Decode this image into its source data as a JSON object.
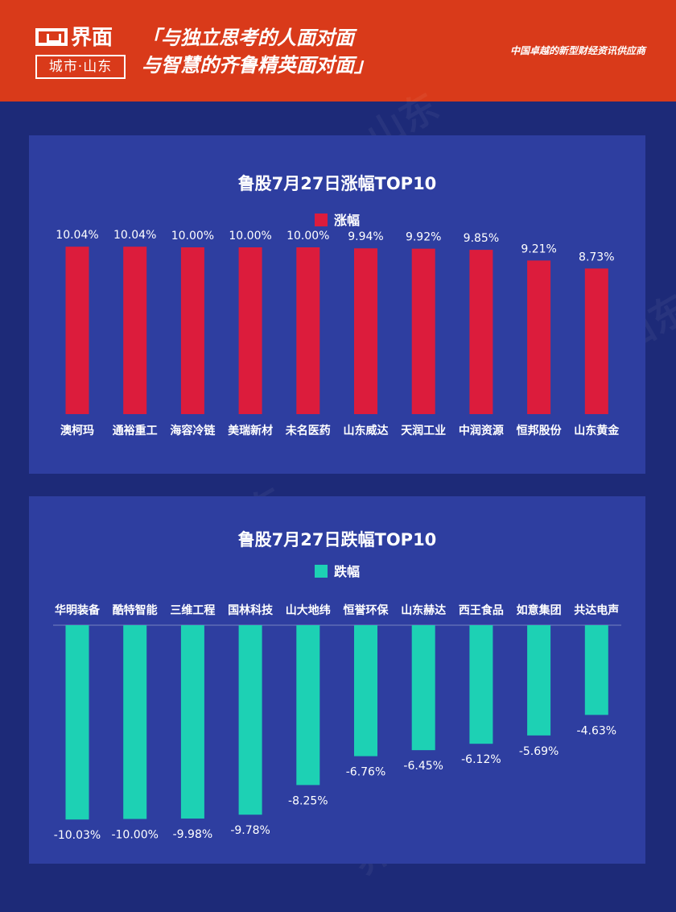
{
  "header": {
    "logo_name": "界面",
    "logo_sub": "城市·山东",
    "slogan_line1": "「与独立思考的人面对面",
    "slogan_line2": "与智慧的齐鲁精英面对面」",
    "tagline": "中国卓越的新型财经资讯供应商"
  },
  "colors": {
    "header_bg": "#d93a1a",
    "background": "#1d2a78",
    "panel": "#2e3ea0",
    "rise": "#dc1c3c",
    "fall": "#1dd1b4"
  },
  "chart_data": [
    {
      "type": "bar",
      "title": "鲁股7月27日涨幅TOP10",
      "series": [
        {
          "name": "涨幅",
          "values": [
            10.04,
            10.04,
            10.0,
            10.0,
            10.0,
            9.94,
            9.92,
            9.85,
            9.21,
            8.73
          ]
        }
      ],
      "categories": [
        "澳柯玛",
        "通裕重工",
        "海容冷链",
        "美瑞新材",
        "未名医药",
        "山东威达",
        "天润工业",
        "中润资源",
        "恒邦股份",
        "山东黄金"
      ],
      "labels": [
        "10.04%",
        "10.04%",
        "10.00%",
        "10.00%",
        "10.00%",
        "9.94%",
        "9.92%",
        "9.85%",
        "9.21%",
        "8.73%"
      ],
      "color": "#dc1c3c",
      "unit": "%",
      "legend_position": "top",
      "grid": false
    },
    {
      "type": "bar",
      "title": "鲁股7月27日跌幅TOP10",
      "series": [
        {
          "name": "跌幅",
          "values": [
            -10.03,
            -10.0,
            -9.98,
            -9.78,
            -8.25,
            -6.76,
            -6.45,
            -6.12,
            -5.69,
            -4.63
          ]
        }
      ],
      "categories": [
        "华明装备",
        "酷特智能",
        "三维工程",
        "国林科技",
        "山大地纬",
        "恒誉环保",
        "山东赫达",
        "西王食品",
        "如意集团",
        "共达电声"
      ],
      "labels": [
        "-10.03%",
        "-10.00%",
        "-9.98%",
        "-9.78%",
        "-8.25%",
        "-6.76%",
        "-6.45%",
        "-6.12%",
        "-5.69%",
        "-4.63%"
      ],
      "color": "#1dd1b4",
      "unit": "%",
      "legend_position": "top",
      "grid": false
    }
  ]
}
